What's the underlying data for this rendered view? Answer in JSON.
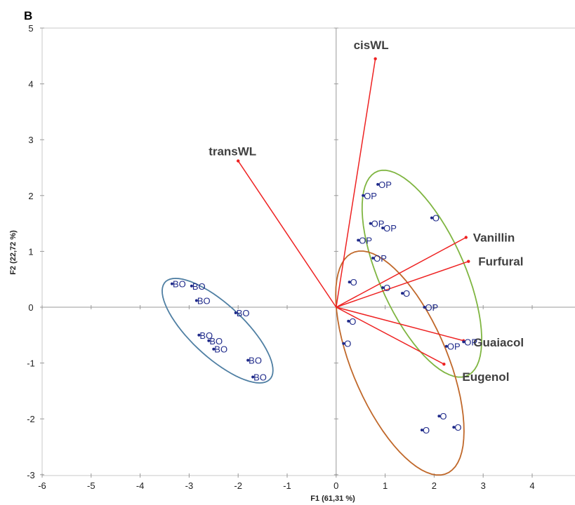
{
  "chart_data": {
    "type": "scatter",
    "panel_label": "B",
    "xlabel": "F1 (61,31 %)",
    "ylabel": "F2 (22,72 %)",
    "xlim": [
      -6,
      5
    ],
    "ylim": [
      -3,
      5
    ],
    "xticks": [
      -6,
      -5,
      -4,
      -3,
      -2,
      -1,
      0,
      1,
      2,
      3,
      4
    ],
    "yticks": [
      -3,
      -2,
      -1,
      0,
      1,
      2,
      3,
      4,
      5
    ],
    "colors": {
      "points": "#1f2a8a",
      "vectors": "#ee2222",
      "BO_ellipse": "#4f7fa3",
      "OP_ellipse": "#7fb541",
      "O_ellipse": "#c0682a",
      "axes": "#999999"
    },
    "observations": [
      {
        "x": -3.35,
        "y": 0.42,
        "label": "BO"
      },
      {
        "x": -2.95,
        "y": 0.38,
        "label": "BO"
      },
      {
        "x": -2.85,
        "y": 0.12,
        "label": "BO"
      },
      {
        "x": -2.05,
        "y": -0.1,
        "label": "BO"
      },
      {
        "x": -2.8,
        "y": -0.5,
        "label": "BO"
      },
      {
        "x": -2.6,
        "y": -0.6,
        "label": "BO"
      },
      {
        "x": -2.5,
        "y": -0.75,
        "label": "BO"
      },
      {
        "x": -1.8,
        "y": -0.95,
        "label": "BO"
      },
      {
        "x": -1.7,
        "y": -1.25,
        "label": "BO"
      },
      {
        "x": 0.85,
        "y": 2.2,
        "label": "OP"
      },
      {
        "x": 0.55,
        "y": 2.0,
        "label": "OP"
      },
      {
        "x": 0.7,
        "y": 1.5,
        "label": "OP"
      },
      {
        "x": 0.95,
        "y": 1.42,
        "label": "OP"
      },
      {
        "x": 0.45,
        "y": 1.2,
        "label": "OP"
      },
      {
        "x": 0.75,
        "y": 0.88,
        "label": "OP"
      },
      {
        "x": 1.95,
        "y": 1.6,
        "label": "O"
      },
      {
        "x": 0.27,
        "y": 0.45,
        "label": "O"
      },
      {
        "x": 0.95,
        "y": 0.35,
        "label": "O"
      },
      {
        "x": 1.35,
        "y": 0.25,
        "label": "O"
      },
      {
        "x": 1.8,
        "y": 0.0,
        "label": "OP"
      },
      {
        "x": 0.25,
        "y": -0.25,
        "label": "O"
      },
      {
        "x": 0.15,
        "y": -0.65,
        "label": "O"
      },
      {
        "x": 2.1,
        "y": -1.95,
        "label": "O"
      },
      {
        "x": 1.75,
        "y": -2.2,
        "label": "O"
      },
      {
        "x": 2.4,
        "y": -2.15,
        "label": "O"
      },
      {
        "x": 2.25,
        "y": -0.7,
        "label": "OP"
      },
      {
        "x": 2.6,
        "y": -0.62,
        "label": "OP"
      }
    ],
    "variables": [
      {
        "name": "cisWL",
        "x": 0.8,
        "y": 4.45
      },
      {
        "name": "transWL",
        "x": -2.0,
        "y": 2.62
      },
      {
        "name": "Vanillin",
        "x": 2.65,
        "y": 1.25
      },
      {
        "name": "Furfural",
        "x": 2.7,
        "y": 0.82
      },
      {
        "name": "Guaiacol",
        "x": 2.6,
        "y": -0.6
      },
      {
        "name": "Eugenol",
        "x": 2.2,
        "y": -1.02
      }
    ],
    "ellipses": [
      {
        "group": "BO",
        "cx": -2.42,
        "cy": -0.42,
        "rx": 1.38,
        "ry": 0.5,
        "angle_deg": -38
      },
      {
        "group": "OP",
        "cx": 1.75,
        "cy": 0.6,
        "rx": 2.05,
        "ry": 0.85,
        "angle_deg": -62
      },
      {
        "group": "O",
        "cx": 1.3,
        "cy": -1.0,
        "rx": 2.2,
        "ry": 0.95,
        "angle_deg": -63
      }
    ]
  }
}
